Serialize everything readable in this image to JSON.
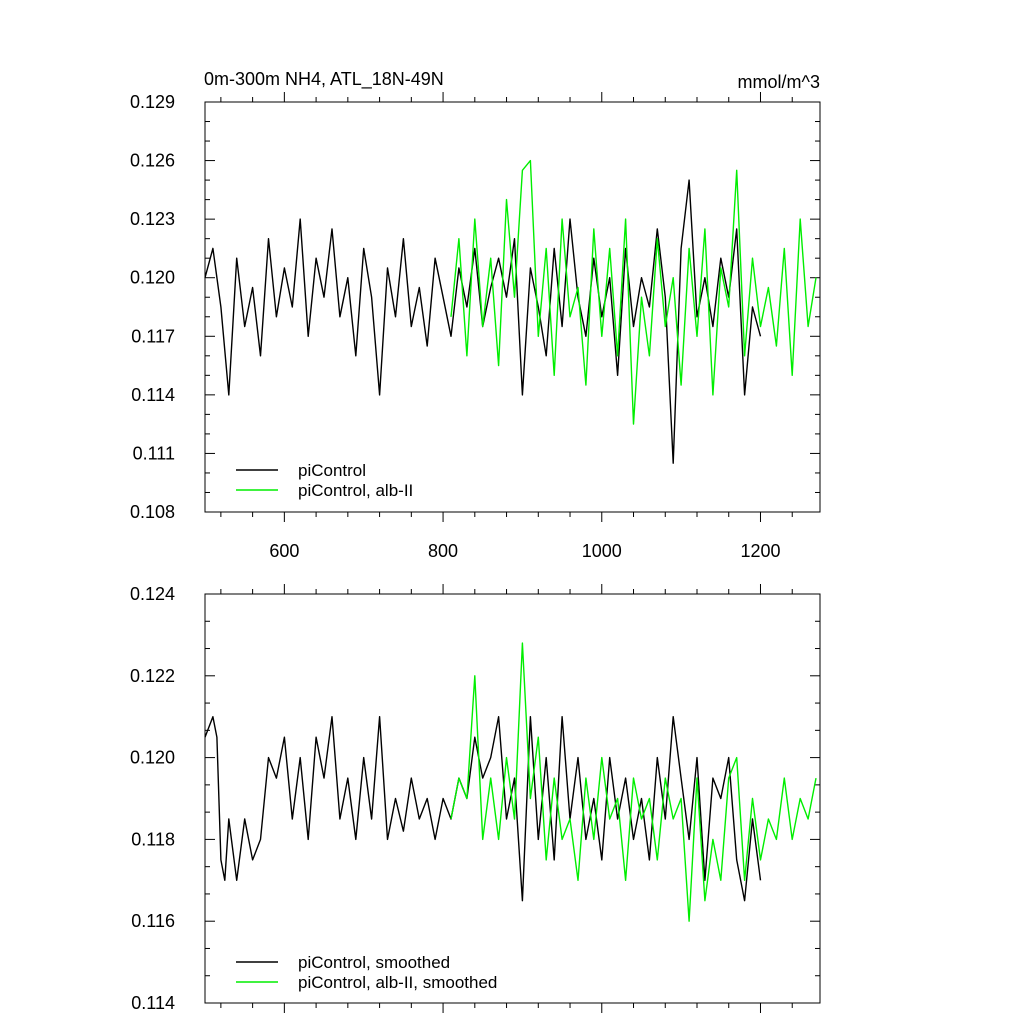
{
  "colors": {
    "picontrol": "#000000",
    "alb_ii": "#00ee00",
    "axis": "#000000",
    "background": "#ffffff"
  },
  "chart_data": [
    {
      "type": "line",
      "title": "0m-300m NH4, ATL_18N-49N",
      "units": "mmol/m^3",
      "xlim": [
        500,
        1275
      ],
      "ylim": [
        0.108,
        0.129
      ],
      "xticks": [
        600,
        800,
        1000,
        1200
      ],
      "xtick_labels": [
        "600",
        "800",
        "1000",
        "1200"
      ],
      "yticks": [
        0.108,
        0.111,
        0.114,
        0.117,
        0.12,
        0.123,
        0.126,
        0.129
      ],
      "ytick_labels": [
        "0.108",
        "0.111",
        "0.114",
        "0.117",
        "0.120",
        "0.123",
        "0.126",
        "0.129"
      ],
      "grid": false,
      "legend_position": "bottom-left",
      "series": [
        {
          "name": "piControl",
          "color": "#000000",
          "x": [
            500,
            510,
            520,
            530,
            540,
            550,
            560,
            570,
            580,
            590,
            600,
            610,
            620,
            630,
            640,
            650,
            660,
            670,
            680,
            690,
            700,
            710,
            720,
            730,
            740,
            750,
            760,
            770,
            780,
            790,
            800,
            810,
            820,
            830,
            840,
            850,
            860,
            870,
            880,
            890,
            900,
            910,
            920,
            930,
            940,
            950,
            960,
            970,
            980,
            990,
            1000,
            1010,
            1020,
            1030,
            1040,
            1050,
            1060,
            1070,
            1080,
            1090,
            1100,
            1110,
            1120,
            1130,
            1140,
            1150,
            1160,
            1170,
            1180,
            1190,
            1200
          ],
          "values": [
            0.12,
            0.1215,
            0.1185,
            0.114,
            0.121,
            0.1175,
            0.1195,
            0.116,
            0.122,
            0.118,
            0.1205,
            0.1185,
            0.123,
            0.117,
            0.121,
            0.119,
            0.1225,
            0.118,
            0.12,
            0.116,
            0.1215,
            0.119,
            0.114,
            0.1205,
            0.118,
            0.122,
            0.1175,
            0.1195,
            0.1165,
            0.121,
            0.119,
            0.117,
            0.1205,
            0.1185,
            0.1215,
            0.1175,
            0.1195,
            0.121,
            0.119,
            0.122,
            0.114,
            0.1205,
            0.1185,
            0.116,
            0.1215,
            0.1175,
            0.123,
            0.119,
            0.117,
            0.121,
            0.118,
            0.12,
            0.115,
            0.1215,
            0.1175,
            0.12,
            0.1185,
            0.1225,
            0.119,
            0.1105,
            0.1215,
            0.125,
            0.118,
            0.12,
            0.1175,
            0.121,
            0.119,
            0.1225,
            0.114,
            0.1185,
            0.117
          ]
        },
        {
          "name": "piControl, alb-II",
          "color": "#00ee00",
          "x": [
            810,
            820,
            830,
            840,
            850,
            860,
            870,
            880,
            890,
            900,
            910,
            920,
            930,
            940,
            950,
            960,
            970,
            980,
            990,
            1000,
            1010,
            1020,
            1030,
            1040,
            1050,
            1060,
            1070,
            1080,
            1090,
            1100,
            1110,
            1120,
            1130,
            1140,
            1150,
            1160,
            1170,
            1180,
            1190,
            1200,
            1210,
            1220,
            1230,
            1240,
            1250,
            1260,
            1270
          ],
          "values": [
            0.118,
            0.122,
            0.116,
            0.123,
            0.1175,
            0.121,
            0.1155,
            0.124,
            0.119,
            0.1255,
            0.126,
            0.117,
            0.1215,
            0.115,
            0.123,
            0.118,
            0.1195,
            0.1145,
            0.1225,
            0.117,
            0.1215,
            0.116,
            0.123,
            0.1125,
            0.119,
            0.116,
            0.122,
            0.1175,
            0.12,
            0.1145,
            0.1215,
            0.117,
            0.1225,
            0.114,
            0.1205,
            0.1185,
            0.1255,
            0.116,
            0.121,
            0.1175,
            0.1195,
            0.1165,
            0.1215,
            0.115,
            0.123,
            0.1175,
            0.12
          ]
        }
      ]
    },
    {
      "type": "line",
      "title": "",
      "units": "",
      "xlim": [
        500,
        1275
      ],
      "ylim": [
        0.114,
        0.124
      ],
      "xticks": [
        600,
        800,
        1000,
        1200
      ],
      "xtick_labels": [],
      "yticks": [
        0.114,
        0.116,
        0.118,
        0.12,
        0.122,
        0.124
      ],
      "ytick_labels": [
        "0.114",
        "0.116",
        "0.118",
        "0.120",
        "0.122",
        "0.124"
      ],
      "grid": false,
      "legend_position": "bottom-left",
      "series": [
        {
          "name": "piControl, smoothed",
          "color": "#000000",
          "x": [
            500,
            510,
            515,
            520,
            525,
            530,
            540,
            550,
            560,
            570,
            580,
            590,
            600,
            610,
            620,
            630,
            640,
            650,
            660,
            670,
            680,
            690,
            700,
            710,
            720,
            730,
            740,
            750,
            760,
            770,
            780,
            790,
            800,
            810,
            820,
            830,
            840,
            850,
            860,
            870,
            880,
            890,
            900,
            910,
            920,
            930,
            940,
            950,
            960,
            970,
            980,
            990,
            1000,
            1010,
            1020,
            1030,
            1040,
            1050,
            1060,
            1070,
            1080,
            1090,
            1100,
            1110,
            1120,
            1130,
            1140,
            1150,
            1160,
            1170,
            1180,
            1190,
            1200
          ],
          "values": [
            0.1205,
            0.121,
            0.1205,
            0.1175,
            0.117,
            0.1185,
            0.117,
            0.1185,
            0.1175,
            0.118,
            0.12,
            0.1195,
            0.1205,
            0.1185,
            0.12,
            0.118,
            0.1205,
            0.1195,
            0.121,
            0.1185,
            0.1195,
            0.118,
            0.12,
            0.1185,
            0.121,
            0.118,
            0.119,
            0.1182,
            0.1195,
            0.1185,
            0.119,
            0.118,
            0.119,
            0.1185,
            0.1195,
            0.119,
            0.1205,
            0.1195,
            0.12,
            0.121,
            0.1185,
            0.1195,
            0.1165,
            0.121,
            0.118,
            0.12,
            0.1175,
            0.121,
            0.1185,
            0.12,
            0.118,
            0.119,
            0.1175,
            0.12,
            0.1185,
            0.1195,
            0.118,
            0.119,
            0.1175,
            0.12,
            0.1185,
            0.121,
            0.1195,
            0.118,
            0.12,
            0.117,
            0.1195,
            0.119,
            0.12,
            0.1175,
            0.1165,
            0.1185,
            0.117
          ]
        },
        {
          "name": "piControl, alb-II, smoothed",
          "color": "#00ee00",
          "x": [
            810,
            820,
            830,
            840,
            850,
            860,
            870,
            880,
            890,
            900,
            910,
            920,
            930,
            940,
            950,
            960,
            970,
            980,
            990,
            1000,
            1010,
            1020,
            1030,
            1040,
            1050,
            1060,
            1070,
            1080,
            1090,
            1100,
            1110,
            1120,
            1130,
            1140,
            1150,
            1160,
            1170,
            1180,
            1190,
            1200,
            1210,
            1220,
            1230,
            1240,
            1250,
            1260,
            1270
          ],
          "values": [
            0.1185,
            0.1195,
            0.119,
            0.122,
            0.118,
            0.1195,
            0.118,
            0.12,
            0.1185,
            0.1228,
            0.119,
            0.1205,
            0.1175,
            0.1195,
            0.118,
            0.1185,
            0.117,
            0.1195,
            0.118,
            0.12,
            0.1185,
            0.119,
            0.117,
            0.1195,
            0.1185,
            0.119,
            0.1175,
            0.1195,
            0.1185,
            0.119,
            0.116,
            0.1195,
            0.1165,
            0.118,
            0.117,
            0.1195,
            0.12,
            0.117,
            0.119,
            0.1175,
            0.1185,
            0.118,
            0.1195,
            0.118,
            0.119,
            0.1185,
            0.1195
          ]
        }
      ]
    }
  ]
}
